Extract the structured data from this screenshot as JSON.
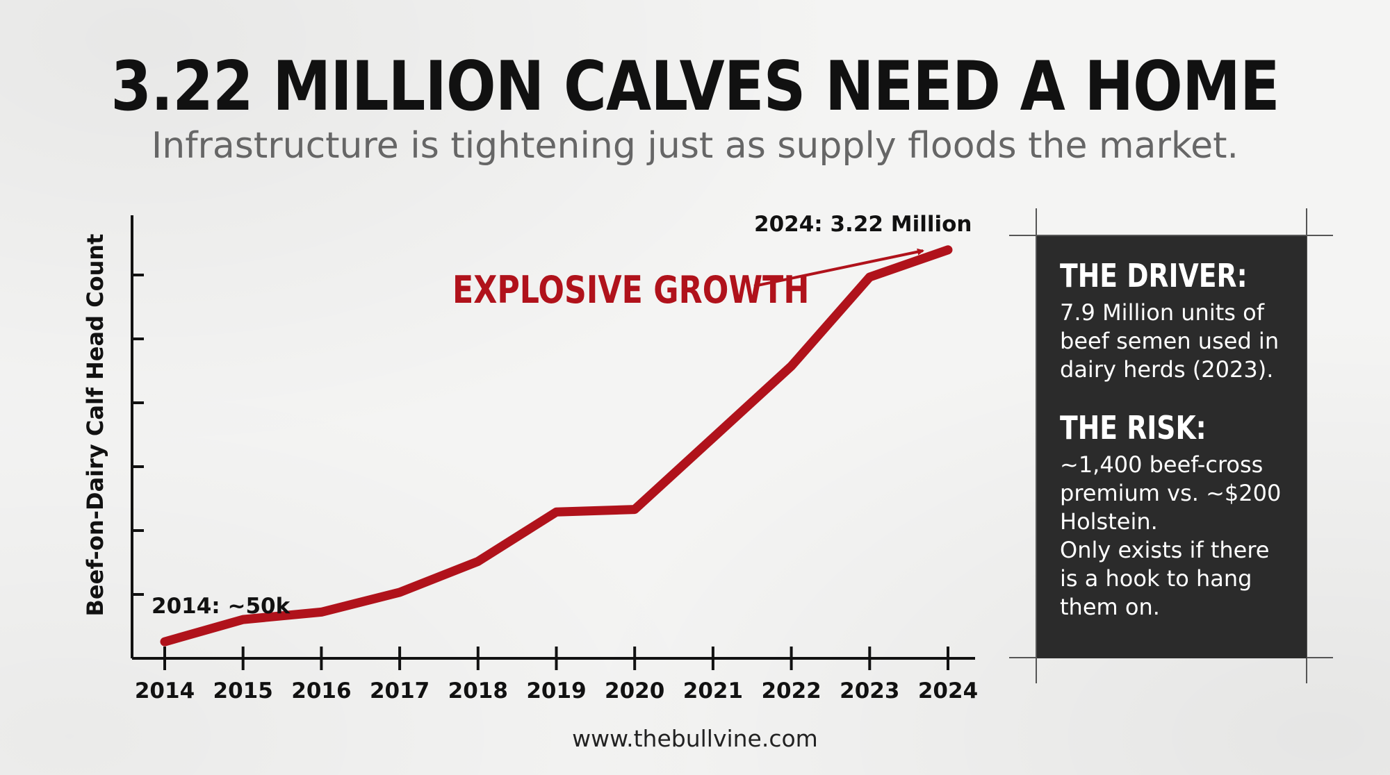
{
  "header": {
    "title": "3.22 MILLION CALVES NEED A HOME",
    "subtitle": "Infrastructure is tightening just as supply floods the market."
  },
  "chart_data": {
    "type": "line",
    "ylabel": "Beef-on-Dairy Calf Head Count",
    "x": [
      "2014",
      "2015",
      "2016",
      "2017",
      "2018",
      "2019",
      "2020",
      "2021",
      "2022",
      "2023",
      "2024"
    ],
    "series": [
      {
        "values": [
          0.05,
          0.23,
          0.29,
          0.45,
          0.7,
          1.1,
          1.12,
          1.7,
          2.28,
          3.0,
          3.22
        ]
      }
    ],
    "ylim": [
      0,
      3.5
    ],
    "annotations": {
      "start": "2014: ~50k",
      "end": "2024: 3.22 Million",
      "growth": "EXPLOSIVE GROWTH"
    },
    "colors": {
      "line": "#b0121b",
      "axis": "#111111"
    }
  },
  "info_box": {
    "driver_heading": "THE DRIVER:",
    "driver_text": "7.9 Million units of\nbeef semen used in\ndairy herds (2023).",
    "risk_heading": "THE RISK:",
    "risk_text": "~1,400 beef-cross\npremium vs. ~$200\nHolstein.\nOnly exists if there\nis a hook to hang\nthem on."
  },
  "footer": {
    "url": "www.thebullvine.com"
  }
}
